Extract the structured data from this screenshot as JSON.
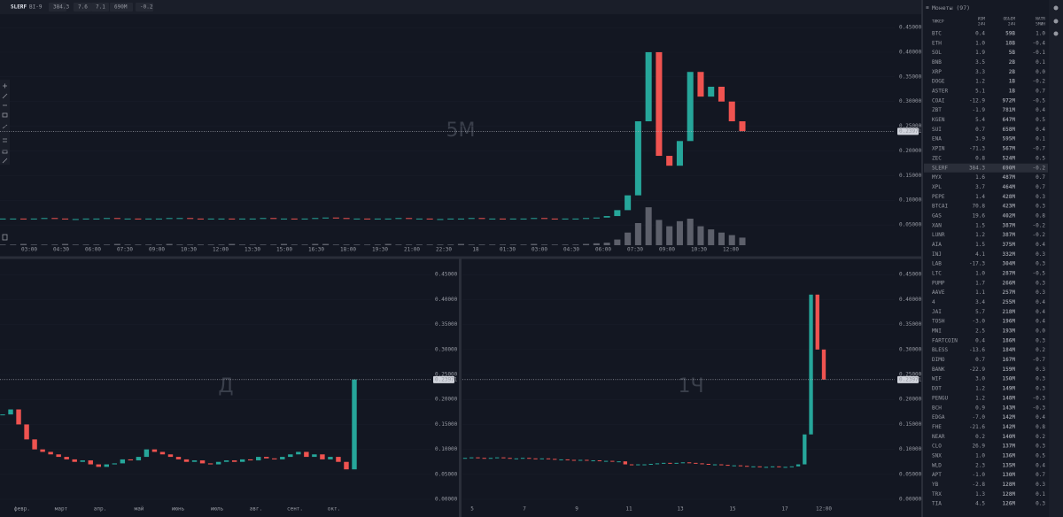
{
  "toolbar": {
    "symbol": "SLERF",
    "exchange": "BI-9",
    "stats": [
      "384.3",
      "7.6",
      "7.1",
      "690M",
      "-0.2"
    ]
  },
  "chart_data": [
    {
      "type": "candlestick",
      "watermark": "5M",
      "x_labels": [
        "03:00",
        "04:30",
        "06:00",
        "07:30",
        "09:00",
        "10:30",
        "12:00",
        "13:30",
        "15:00",
        "16:30",
        "18:00",
        "19:30",
        "21:00",
        "22:30",
        "18",
        "01:30",
        "03:00",
        "04:30",
        "06:00",
        "07:30",
        "09:00",
        "10:30",
        "12:00"
      ],
      "values": [
        0.063,
        0.063,
        0.062,
        0.063,
        0.064,
        0.063,
        0.062,
        0.062,
        0.063,
        0.063,
        0.064,
        0.063,
        0.063,
        0.062,
        0.063,
        0.063,
        0.064,
        0.064,
        0.063,
        0.062,
        0.063,
        0.063,
        0.062,
        0.063,
        0.063,
        0.064,
        0.063,
        0.063,
        0.062,
        0.063,
        0.064,
        0.065,
        0.064,
        0.063,
        0.063,
        0.062,
        0.063,
        0.063,
        0.064,
        0.063,
        0.063,
        0.062,
        0.062,
        0.063,
        0.063,
        0.064,
        0.063,
        0.063,
        0.062,
        0.063,
        0.063,
        0.064,
        0.063,
        0.062,
        0.063,
        0.063,
        0.064,
        0.065,
        0.068,
        0.08,
        0.11,
        0.26,
        0.4,
        0.19,
        0.17,
        0.22,
        0.36,
        0.31,
        0.33,
        0.3,
        0.26,
        0.24
      ],
      "volume": [
        1,
        1,
        2,
        1,
        1,
        1,
        2,
        1,
        1,
        1,
        1,
        2,
        1,
        1,
        1,
        1,
        2,
        1,
        1,
        1,
        1,
        1,
        2,
        1,
        1,
        1,
        1,
        2,
        1,
        1,
        2,
        2,
        1,
        1,
        1,
        1,
        1,
        2,
        1,
        1,
        1,
        1,
        1,
        1,
        2,
        1,
        1,
        1,
        1,
        1,
        1,
        2,
        1,
        1,
        1,
        1,
        2,
        3,
        4,
        9,
        20,
        35,
        60,
        40,
        30,
        38,
        42,
        30,
        25,
        20,
        16,
        12
      ],
      "volume_lim": [
        0,
        140
      ],
      "ylim": [
        0.0215,
        0.477
      ],
      "yticks": [
        {
          "value": 0.45,
          "label": "0.45000"
        },
        {
          "value": 0.4,
          "label": "0.40000"
        },
        {
          "value": 0.35,
          "label": "0.35000"
        },
        {
          "value": 0.3,
          "label": "0.30000"
        },
        {
          "value": 0.25,
          "label": "0.25000"
        },
        {
          "value": 0.2,
          "label": "0.20000"
        },
        {
          "value": 0.15,
          "label": "0.15000"
        },
        {
          "value": 0.1,
          "label": "0.10000"
        },
        {
          "value": 0.05,
          "label": "0.05000"
        }
      ],
      "last_price": {
        "value": 0.23971,
        "label": "0.23971"
      }
    },
    {
      "type": "candlestick",
      "watermark": "Д",
      "x_labels": [
        "февр.",
        "март",
        "апр.",
        "май",
        "июнь",
        "июль",
        "авг.",
        "сент.",
        "окт."
      ],
      "values": [
        0.17,
        0.18,
        0.15,
        0.12,
        0.1,
        0.095,
        0.09,
        0.085,
        0.08,
        0.075,
        0.078,
        0.07,
        0.065,
        0.07,
        0.072,
        0.08,
        0.078,
        0.085,
        0.1,
        0.095,
        0.09,
        0.085,
        0.08,
        0.075,
        0.078,
        0.072,
        0.07,
        0.075,
        0.078,
        0.075,
        0.08,
        0.078,
        0.085,
        0.082,
        0.08,
        0.085,
        0.09,
        0.095,
        0.085,
        0.09,
        0.08,
        0.085,
        0.075,
        0.06,
        0.24
      ],
      "ylim": [
        -0.0035,
        0.477
      ],
      "yticks": [
        {
          "value": 0.45,
          "label": "0.45000"
        },
        {
          "value": 0.4,
          "label": "0.40000"
        },
        {
          "value": 0.35,
          "label": "0.35000"
        },
        {
          "value": 0.3,
          "label": "0.30000"
        },
        {
          "value": 0.25,
          "label": "0.25000"
        },
        {
          "value": 0.2,
          "label": "0.20000"
        },
        {
          "value": 0.15,
          "label": "0.15000"
        },
        {
          "value": 0.1,
          "label": "0.10000"
        },
        {
          "value": 0.05,
          "label": "0.05000"
        },
        {
          "value": 0,
          "label": "0.00000"
        }
      ],
      "last_price": {
        "value": 0.23971,
        "label": "0.23971"
      }
    },
    {
      "type": "candlestick",
      "watermark": "1Ч",
      "x_labels": [
        "5",
        "7",
        "9",
        "11",
        "13",
        "15",
        "17",
        "12:00"
      ],
      "values": [
        0.083,
        0.084,
        0.083,
        0.082,
        0.083,
        0.084,
        0.083,
        0.082,
        0.082,
        0.083,
        0.082,
        0.081,
        0.082,
        0.081,
        0.08,
        0.08,
        0.079,
        0.078,
        0.079,
        0.078,
        0.078,
        0.077,
        0.077,
        0.076,
        0.076,
        0.07,
        0.069,
        0.07,
        0.07,
        0.071,
        0.072,
        0.073,
        0.072,
        0.073,
        0.074,
        0.073,
        0.072,
        0.071,
        0.07,
        0.07,
        0.069,
        0.068,
        0.068,
        0.067,
        0.066,
        0.066,
        0.065,
        0.065,
        0.066,
        0.065,
        0.065,
        0.066,
        0.07,
        0.13,
        0.41,
        0.3,
        0.24
      ],
      "ylim": [
        -0.0035,
        0.477
      ],
      "yticks": [
        {
          "value": 0.45,
          "label": "0.45000"
        },
        {
          "value": 0.4,
          "label": "0.40000"
        },
        {
          "value": 0.35,
          "label": "0.35000"
        },
        {
          "value": 0.3,
          "label": "0.30000"
        },
        {
          "value": 0.25,
          "label": "0.25000"
        },
        {
          "value": 0.2,
          "label": "0.20000"
        },
        {
          "value": 0.15,
          "label": "0.15000"
        },
        {
          "value": 0.1,
          "label": "0.10000"
        },
        {
          "value": 0.05,
          "label": "0.05000"
        },
        {
          "value": 0,
          "label": "0.00000"
        }
      ],
      "last_price": {
        "value": 0.23971,
        "label": "0.23971"
      }
    }
  ],
  "watchlist": {
    "title": "Монеты (97)",
    "columns": [
      [
        "ТИКЕР"
      ],
      [
        "ИЗМ",
        "24Ч"
      ],
      [
        "ОБЪЕМ",
        "24Ч"
      ],
      [
        "NATR",
        "5МИН"
      ]
    ],
    "rows": [
      [
        "BTC",
        "0.4",
        "59B",
        "1.0"
      ],
      [
        "ETH",
        "1.0",
        "18B",
        "-0.4"
      ],
      [
        "SOL",
        "1.9",
        "5B",
        "-0.1"
      ],
      [
        "BNB",
        "3.5",
        "2B",
        "0.1"
      ],
      [
        "XRP",
        "3.3",
        "2B",
        "0.0"
      ],
      [
        "DOGE",
        "1.2",
        "1B",
        "-0.2"
      ],
      [
        "ASTER",
        "5.1",
        "1B",
        "0.7"
      ],
      [
        "COAI",
        "-12.9",
        "972M",
        "-0.5"
      ],
      [
        "ZBT",
        "-1.9",
        "781M",
        "0.4"
      ],
      [
        "KGEN",
        "5.4",
        "647M",
        "0.5"
      ],
      [
        "SUI",
        "0.7",
        "658M",
        "0.4"
      ],
      [
        "ENA",
        "3.9",
        "595M",
        "0.1"
      ],
      [
        "XPIN",
        "-71.3",
        "567M",
        "-0.7"
      ],
      [
        "ZEC",
        "0.8",
        "524M",
        "0.5"
      ],
      [
        "SLERF",
        "384.3",
        "690M",
        "-0.2"
      ],
      [
        "MYX",
        "1.6",
        "487M",
        "0.7"
      ],
      [
        "XPL",
        "3.7",
        "464M",
        "0.7"
      ],
      [
        "PEPE",
        "1.4",
        "428M",
        "0.3"
      ],
      [
        "BTCAI",
        "70.8",
        "423M",
        "0.3"
      ],
      [
        "GAS",
        "19.6",
        "402M",
        "0.8"
      ],
      [
        "XAN",
        "1.5",
        "387M",
        "-0.2"
      ],
      [
        "LUNR",
        "1.2",
        "387M",
        "-0.2"
      ],
      [
        "AIA",
        "1.5",
        "375M",
        "0.4"
      ],
      [
        "INJ",
        "4.1",
        "332M",
        "0.3"
      ],
      [
        "LAB",
        "-17.3",
        "304M",
        "0.3"
      ],
      [
        "LTC",
        "1.0",
        "287M",
        "-0.5"
      ],
      [
        "PUMP",
        "1.7",
        "266M",
        "0.3"
      ],
      [
        "AAVE",
        "1.1",
        "257M",
        "0.3"
      ],
      [
        "4",
        "3.4",
        "255M",
        "0.4"
      ],
      [
        "JAI",
        "5.7",
        "218M",
        "0.4"
      ],
      [
        "TOSH",
        "-3.0",
        "196M",
        "0.4"
      ],
      [
        "MNI",
        "2.5",
        "193M",
        "0.0"
      ],
      [
        "FARTCOIN",
        "0.4",
        "186M",
        "0.3"
      ],
      [
        "BLESS",
        "-13.6",
        "184M",
        "0.2"
      ],
      [
        "DIMO",
        "0.7",
        "167M",
        "-0.7"
      ],
      [
        "BANK",
        "-22.9",
        "159M",
        "0.3"
      ],
      [
        "WIF",
        "3.0",
        "150M",
        "0.3"
      ],
      [
        "DOT",
        "1.2",
        "149M",
        "0.3"
      ],
      [
        "PENGU",
        "1.2",
        "148M",
        "-0.3"
      ],
      [
        "BCH",
        "0.9",
        "143M",
        "-0.3"
      ],
      [
        "EDGA",
        "-7.0",
        "142M",
        "0.4"
      ],
      [
        "FHE",
        "-21.6",
        "142M",
        "0.8"
      ],
      [
        "NEAR",
        "0.2",
        "140M",
        "0.2"
      ],
      [
        "CLO",
        "26.9",
        "137M",
        "0.3"
      ],
      [
        "SNX",
        "1.0",
        "136M",
        "0.5"
      ],
      [
        "WLD",
        "2.3",
        "135M",
        "0.4"
      ],
      [
        "APT",
        "-1.0",
        "130M",
        "0.7"
      ],
      [
        "YB",
        "-2.8",
        "128M",
        "0.3"
      ],
      [
        "TRX",
        "1.3",
        "128M",
        "0.1"
      ],
      [
        "TIA",
        "4.5",
        "126M",
        "0.3"
      ]
    ]
  }
}
